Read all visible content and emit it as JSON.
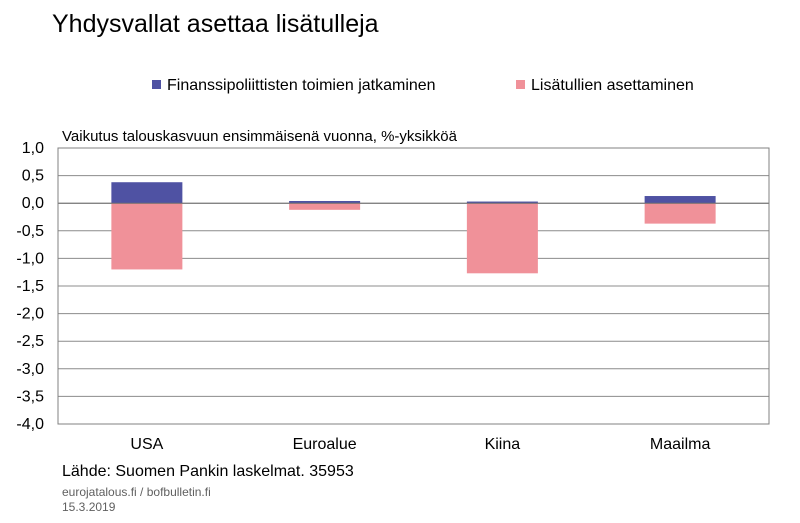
{
  "title": "Yhdysvallat asettaa lisätulleja",
  "legend": [
    {
      "label": "Finanssipoliittisten toimien jatkaminen",
      "color": "#4f52a3"
    },
    {
      "label": "Lisätullien asettaminen",
      "color": "#f09199"
    }
  ],
  "footer": {
    "source": "Lähde: Suomen Pankin laskelmat. 35953",
    "site": "eurojatalous.fi / bofbulletin.fi",
    "date": "15.3.2019"
  },
  "chart_data": {
    "type": "bar",
    "stacked": true,
    "title": "Vaikutus talouskasvuun ensimmäisenä vuonna, %-yksikköä",
    "categories": [
      "USA",
      "Euroalue",
      "Kiina",
      "Maailma"
    ],
    "series": [
      {
        "name": "Finanssipoliittisten toimien jatkaminen",
        "color": "#4f52a3",
        "values": [
          0.38,
          0.04,
          0.03,
          0.13
        ]
      },
      {
        "name": "Lisätullien asettaminen",
        "color": "#f09199",
        "values": [
          -1.2,
          -0.12,
          -1.27,
          -0.37
        ]
      }
    ],
    "ylim": [
      -4.0,
      1.0
    ],
    "yticks": [
      "1,0",
      "0,5",
      "0,0",
      "-0,5",
      "-1,0",
      "-1,5",
      "-2,0",
      "-2,5",
      "-3,0",
      "-3,5",
      "-4,0"
    ],
    "grid": true,
    "legend_position": "top"
  }
}
